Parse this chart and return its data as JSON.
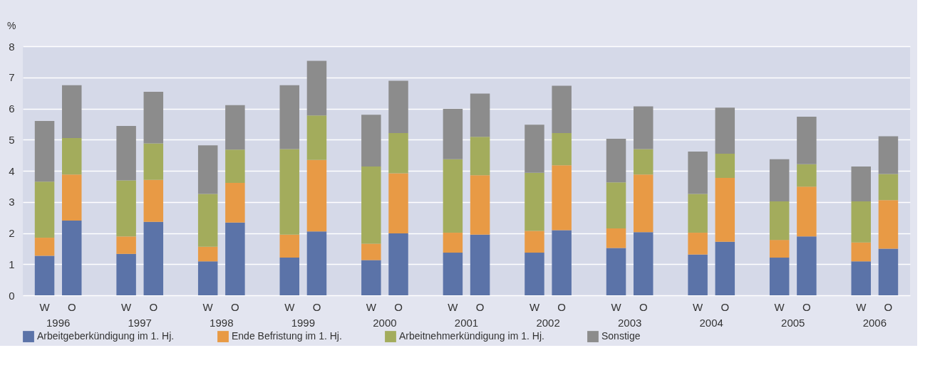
{
  "chart_data": {
    "type": "bar",
    "stacked": true,
    "ylabel": "%",
    "ylim": [
      0,
      8
    ],
    "yticks": [
      0,
      1,
      2,
      3,
      4,
      5,
      6,
      7,
      8
    ],
    "grid": "y",
    "legend": "bottom",
    "categories": [
      "W",
      "O",
      "W",
      "O",
      "W",
      "O",
      "W",
      "O",
      "W",
      "O",
      "W",
      "O",
      "W",
      "O",
      "W",
      "O",
      "W",
      "O",
      "W",
      "O",
      "W",
      "O"
    ],
    "annotations": [
      "1996",
      "1997",
      "1998",
      "1999",
      "2000",
      "2001",
      "2002",
      "2003",
      "2004",
      "2005",
      "2006"
    ],
    "series": [
      {
        "name": "Arbeitgeberkündigung im 1. Hj.",
        "color": "#5b73a8",
        "values": [
          1.27,
          2.4,
          1.33,
          2.36,
          1.09,
          2.34,
          1.21,
          2.05,
          1.13,
          1.99,
          1.37,
          1.95,
          1.37,
          2.09,
          1.52,
          2.03,
          1.31,
          1.72,
          1.21,
          1.89,
          1.09,
          1.5
        ]
      },
      {
        "name": "Ende Befristung im 1. Hj.",
        "color": "#e89a45",
        "values": [
          0.58,
          1.48,
          0.56,
          1.35,
          0.47,
          1.27,
          0.74,
          2.3,
          0.53,
          1.93,
          0.64,
          1.91,
          0.7,
          2.09,
          0.63,
          1.85,
          0.7,
          2.05,
          0.57,
          1.6,
          0.61,
          1.56
        ]
      },
      {
        "name": "Arbeitnehmerkündigung im 1. Hj.",
        "color": "#a3ac5c",
        "values": [
          1.8,
          1.17,
          1.8,
          1.17,
          1.7,
          1.07,
          2.75,
          1.43,
          2.48,
          1.29,
          2.36,
          1.23,
          1.87,
          1.03,
          1.48,
          0.82,
          1.25,
          0.78,
          1.24,
          0.72,
          1.32,
          0.84
        ]
      },
      {
        "name": "Sonstige",
        "color": "#8c8c8c",
        "values": [
          1.95,
          1.7,
          1.75,
          1.66,
          1.56,
          1.43,
          2.05,
          1.75,
          1.66,
          1.68,
          1.62,
          1.39,
          1.54,
          1.52,
          1.4,
          1.37,
          1.36,
          1.48,
          1.35,
          1.53,
          1.12,
          1.21
        ]
      }
    ]
  }
}
